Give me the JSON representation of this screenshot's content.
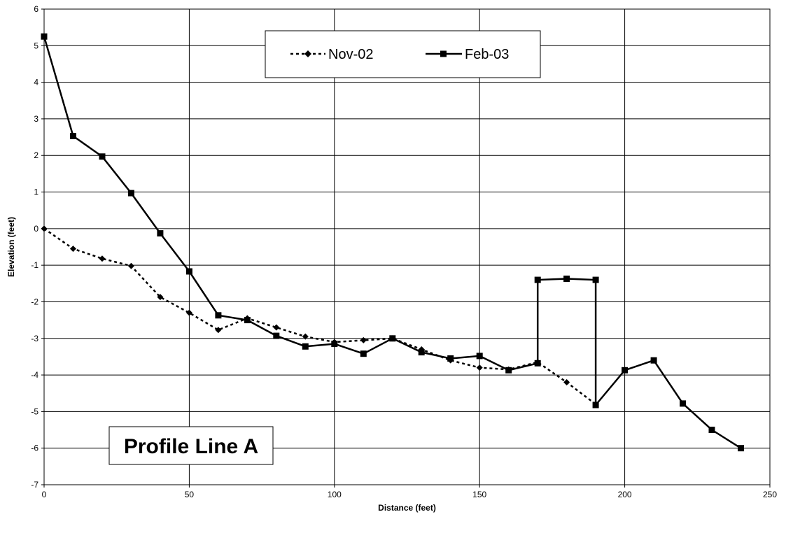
{
  "chart_data": {
    "type": "line",
    "xlabel": "Distance (feet)",
    "ylabel": "Elevation (feet)",
    "xlim": [
      0,
      250
    ],
    "ylim": [
      -7,
      6
    ],
    "xticks": [
      0,
      50,
      100,
      150,
      200,
      250
    ],
    "yticks": [
      6,
      5,
      4,
      3,
      2,
      1,
      0,
      -1,
      -2,
      -3,
      -4,
      -5,
      -6,
      -7
    ],
    "grid": true,
    "legend_position": "top-center",
    "annotation": "Profile Line A",
    "series": [
      {
        "name": "Nov-02",
        "style": "dotted",
        "marker": "diamond",
        "color": "#000000",
        "x": [
          0,
          10,
          20,
          30,
          40,
          50,
          60,
          70,
          80,
          90,
          100,
          110,
          120,
          130,
          140,
          150,
          160,
          170,
          180,
          190
        ],
        "y": [
          0,
          -0.55,
          -0.82,
          -1.02,
          -1.87,
          -2.3,
          -2.77,
          -2.45,
          -2.7,
          -2.95,
          -3.1,
          -3.05,
          -3.0,
          -3.3,
          -3.6,
          -3.8,
          -3.85,
          -3.65,
          -4.2,
          -4.8
        ]
      },
      {
        "name": "Feb-03",
        "style": "solid",
        "marker": "square",
        "color": "#000000",
        "x": [
          0,
          10,
          20,
          30,
          40,
          50,
          60,
          70,
          80,
          90,
          100,
          110,
          120,
          130,
          140,
          150,
          160,
          170,
          170,
          180,
          190,
          190,
          200,
          210,
          220,
          230,
          240
        ],
        "y": [
          5.25,
          2.53,
          1.97,
          0.97,
          -0.13,
          -1.17,
          -2.37,
          -2.5,
          -2.93,
          -3.22,
          -3.15,
          -3.42,
          -3.0,
          -3.38,
          -3.55,
          -3.48,
          -3.87,
          -3.68,
          -1.4,
          -1.37,
          -1.4,
          -4.82,
          -3.87,
          -3.6,
          -4.78,
          -5.5,
          -6.0
        ]
      }
    ]
  }
}
